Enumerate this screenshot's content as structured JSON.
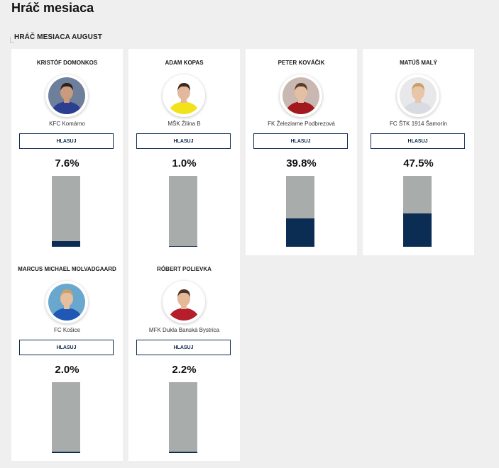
{
  "page": {
    "title": "Hráč mesiaca",
    "section_title": "HRÁČ MESIACA AUGUST"
  },
  "colors": {
    "bar_background": "#a8acab",
    "bar_fill": "#0c2d53",
    "button_border": "#0d2b4f"
  },
  "players": [
    {
      "name": "KRISTÓF DOMONKOS",
      "club": "KFC Komárno",
      "vote_label": "HLASUJ",
      "percent_label": "7.6%",
      "percent": 7.6,
      "avatar": {
        "bg": "#6d7f9a",
        "shirt": "#2c3e8f",
        "skin": "#c99a7d",
        "hair": "#2a211c"
      }
    },
    {
      "name": "ADAM KOPAS",
      "club": "MŠK Žilina B",
      "vote_label": "HLASUJ",
      "percent_label": "1.0%",
      "percent": 1.0,
      "avatar": {
        "bg": "#ffffff",
        "shirt": "#f2e21c",
        "skin": "#e2b99c",
        "hair": "#3b2a20"
      }
    },
    {
      "name": "PETER KOVÁČIK",
      "club": "FK Železiarne Podbrezová",
      "vote_label": "HLASUJ",
      "percent_label": "39.8%",
      "percent": 39.8,
      "avatar": {
        "bg": "#c9b7b1",
        "shirt": "#a3181f",
        "skin": "#e5bfa3",
        "hair": "#5a3c2a"
      }
    },
    {
      "name": "MATÚŠ MALÝ",
      "club": "FC ŠTK 1914 Šamorín",
      "vote_label": "HLASUJ",
      "percent_label": "47.5%",
      "percent": 47.5,
      "avatar": {
        "bg": "#e8e8ea",
        "shirt": "#d8dbe2",
        "skin": "#e8c4a8",
        "hair": "#c9a06a"
      }
    },
    {
      "name": "MARCUS MICHAEL MOLVADGAARD",
      "club": "FC Košice",
      "vote_label": "HLASUJ",
      "percent_label": "2.0%",
      "percent": 2.0,
      "avatar": {
        "bg": "#6aa7cf",
        "shirt": "#1f58b5",
        "skin": "#e6bea0",
        "hair": "#c8a26c"
      }
    },
    {
      "name": "RÓBERT POLIEVKA",
      "club": "MFK Dukla Banská Bystrica",
      "vote_label": "HLASUJ",
      "percent_label": "2.2%",
      "percent": 2.2,
      "avatar": {
        "bg": "#ffffff",
        "shirt": "#b51e2b",
        "skin": "#e4b998",
        "hair": "#4a3326"
      }
    }
  ]
}
